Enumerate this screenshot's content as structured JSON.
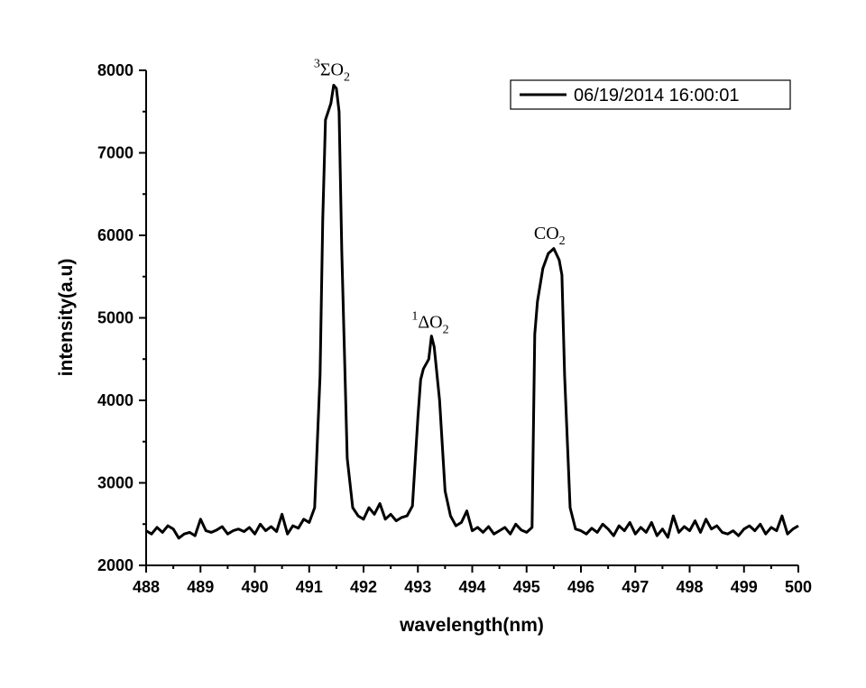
{
  "chart_data": {
    "type": "line",
    "title": "",
    "xlabel": "wavelength(nm)",
    "ylabel": "intensity(a.u)",
    "xlim": [
      488,
      500
    ],
    "ylim": [
      2000,
      8000
    ],
    "x_ticks": [
      488,
      489,
      490,
      491,
      492,
      493,
      494,
      495,
      496,
      497,
      498,
      499,
      500
    ],
    "y_ticks": [
      2000,
      3000,
      4000,
      5000,
      6000,
      7000,
      8000
    ],
    "grid": false,
    "legend_position": "top-right",
    "line_color": "#000000",
    "series": [
      {
        "name": "06/19/2014 16:00:01",
        "x": [
          488.0,
          488.1,
          488.2,
          488.3,
          488.4,
          488.5,
          488.6,
          488.7,
          488.8,
          488.9,
          489.0,
          489.1,
          489.2,
          489.3,
          489.4,
          489.5,
          489.6,
          489.7,
          489.8,
          489.9,
          490.0,
          490.1,
          490.2,
          490.3,
          490.4,
          490.5,
          490.6,
          490.7,
          490.8,
          490.9,
          491.0,
          491.1,
          491.2,
          491.25,
          491.3,
          491.4,
          491.45,
          491.5,
          491.55,
          491.6,
          491.7,
          491.8,
          491.9,
          492.0,
          492.1,
          492.2,
          492.3,
          492.4,
          492.5,
          492.6,
          492.7,
          492.8,
          492.9,
          493.0,
          493.05,
          493.1,
          493.2,
          493.25,
          493.3,
          493.4,
          493.5,
          493.6,
          493.7,
          493.8,
          493.9,
          494.0,
          494.1,
          494.2,
          494.3,
          494.4,
          494.5,
          494.6,
          494.7,
          494.8,
          494.9,
          495.0,
          495.1,
          495.15,
          495.2,
          495.3,
          495.4,
          495.5,
          495.6,
          495.65,
          495.7,
          495.8,
          495.9,
          496.0,
          496.1,
          496.2,
          496.3,
          496.4,
          496.5,
          496.6,
          496.7,
          496.8,
          496.9,
          497.0,
          497.1,
          497.2,
          497.3,
          497.4,
          497.5,
          497.6,
          497.7,
          497.8,
          497.9,
          498.0,
          498.1,
          498.2,
          498.3,
          498.4,
          498.5,
          498.6,
          498.7,
          498.8,
          498.9,
          499.0,
          499.1,
          499.2,
          499.3,
          499.4,
          499.5,
          499.6,
          499.7,
          499.8,
          499.9,
          500.0
        ],
        "y": [
          2420,
          2380,
          2460,
          2400,
          2480,
          2440,
          2330,
          2380,
          2400,
          2360,
          2560,
          2420,
          2400,
          2430,
          2470,
          2380,
          2420,
          2440,
          2410,
          2460,
          2380,
          2500,
          2420,
          2470,
          2410,
          2620,
          2380,
          2480,
          2450,
          2560,
          2520,
          2700,
          4300,
          6200,
          7400,
          7600,
          7820,
          7780,
          7500,
          5800,
          3300,
          2700,
          2600,
          2560,
          2700,
          2620,
          2750,
          2560,
          2620,
          2540,
          2580,
          2600,
          2720,
          3800,
          4250,
          4380,
          4500,
          4780,
          4650,
          4000,
          2900,
          2600,
          2480,
          2520,
          2660,
          2420,
          2460,
          2400,
          2470,
          2380,
          2420,
          2460,
          2380,
          2500,
          2430,
          2400,
          2460,
          4800,
          5200,
          5600,
          5780,
          5840,
          5700,
          5520,
          4300,
          2700,
          2440,
          2420,
          2380,
          2450,
          2400,
          2500,
          2440,
          2360,
          2480,
          2420,
          2520,
          2380,
          2460,
          2400,
          2520,
          2360,
          2440,
          2340,
          2600,
          2400,
          2470,
          2420,
          2540,
          2400,
          2560,
          2440,
          2480,
          2400,
          2380,
          2420,
          2360,
          2440,
          2480,
          2420,
          2500,
          2380,
          2460,
          2420,
          2600,
          2380,
          2440,
          2480
        ]
      }
    ],
    "annotations": [
      {
        "pre": "3",
        "main": "ΣO",
        "sub": "2",
        "x": 491.45,
        "y": 7850
      },
      {
        "pre": "1",
        "main": "ΔO",
        "sub": "2",
        "x": 493.25,
        "y": 4790
      },
      {
        "pre": "",
        "main": "CO",
        "sub": "2",
        "x": 495.5,
        "y": 5870
      }
    ]
  }
}
